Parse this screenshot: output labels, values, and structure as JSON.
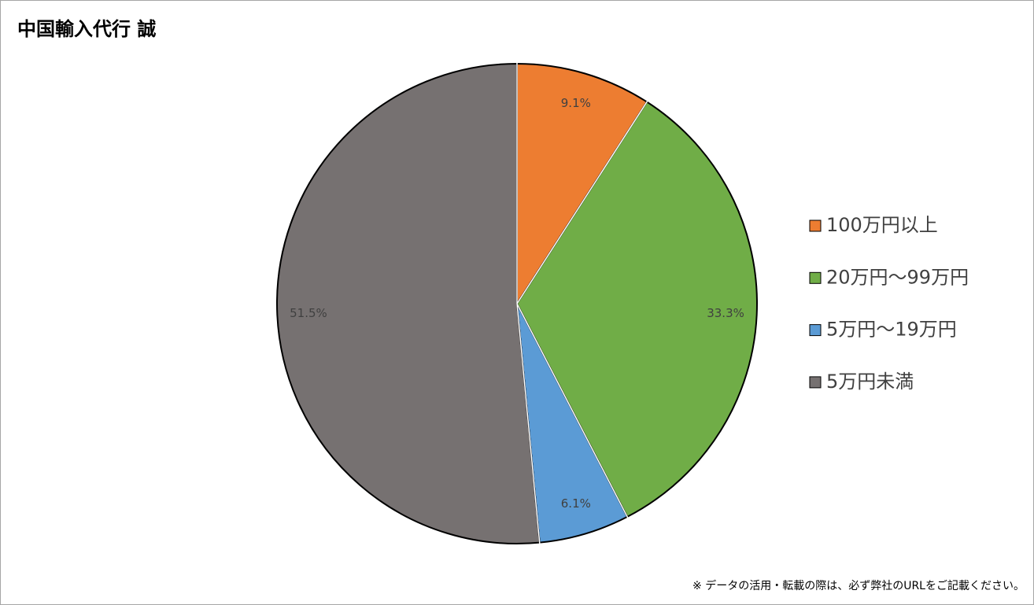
{
  "chart_data": {
    "type": "pie",
    "title": "中国輸入代行 誠",
    "categories": [
      "100万円以上",
      "20万円～99万円",
      "5万円～19万円",
      "5万円未満"
    ],
    "values": [
      9.1,
      33.3,
      6.1,
      51.5
    ],
    "value_labels": [
      "9.1%",
      "33.3%",
      "6.1%",
      "51.5%"
    ],
    "colors": [
      "#ed7d31",
      "#70ad47",
      "#5b9bd5",
      "#767171"
    ],
    "legend": "right",
    "note": "※ データの活用・転載の際は、必ず弊社のURLをご記載ください。"
  }
}
